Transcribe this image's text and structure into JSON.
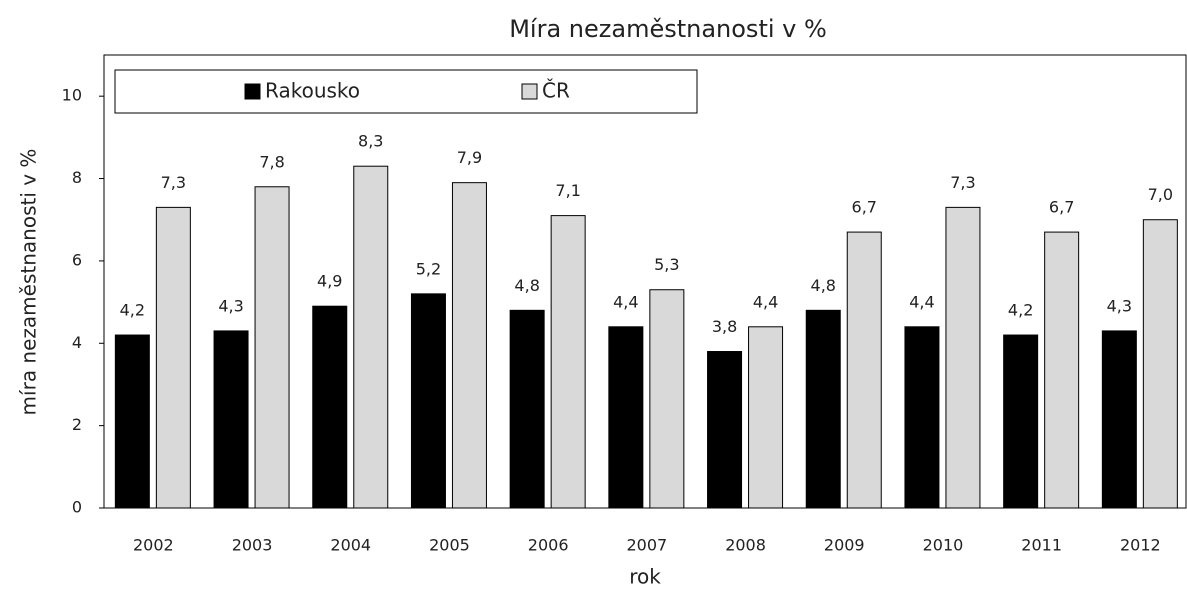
{
  "chart_data": {
    "type": "bar",
    "title": "Míra nezaměstnanosti v %",
    "x_label": "rok",
    "y_label": "míra nezaměstnanosti v %",
    "categories": [
      "2002",
      "2003",
      "2004",
      "2005",
      "2006",
      "2007",
      "2008",
      "2009",
      "2010",
      "2011",
      "2012"
    ],
    "series": [
      {
        "name": "Rakousko",
        "color": "#000000",
        "values": [
          4.2,
          4.3,
          4.9,
          5.2,
          4.8,
          4.4,
          3.8,
          4.8,
          4.4,
          4.2,
          4.3
        ],
        "value_labels": [
          "4,2",
          "4,3",
          "4,9",
          "5,2",
          "4,8",
          "4,4",
          "3,8",
          "4,8",
          "4,4",
          "4,2",
          "4,3"
        ]
      },
      {
        "name": "ČR",
        "color": "#d9d9d9",
        "values": [
          7.3,
          7.8,
          8.3,
          7.9,
          7.1,
          5.3,
          4.4,
          6.7,
          7.3,
          6.7,
          7.0
        ],
        "value_labels": [
          "7,3",
          "7,8",
          "8,3",
          "7,9",
          "7,1",
          "5,3",
          "4,4",
          "6,7",
          "7,3",
          "6,7",
          "7,0"
        ]
      }
    ],
    "ylim": [
      0,
      11
    ],
    "yticks": [
      0,
      2,
      4,
      6,
      8,
      10
    ],
    "grid": false
  }
}
